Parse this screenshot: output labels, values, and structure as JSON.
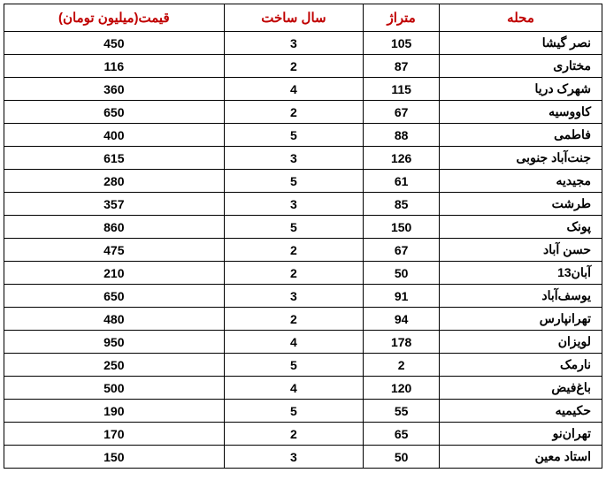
{
  "table": {
    "header_color": "#c00000",
    "columns": [
      "قیمت(میلیون تومان)",
      "سال ساخت",
      "متراژ",
      "محله"
    ],
    "rows": [
      {
        "price": "450",
        "year": "3",
        "area": "105",
        "neighborhood": "نصر گیشا"
      },
      {
        "price": "116",
        "year": "2",
        "area": "87",
        "neighborhood": "مختاری"
      },
      {
        "price": "360",
        "year": "4",
        "area": "115",
        "neighborhood": "شهرک دریا"
      },
      {
        "price": "650",
        "year": "2",
        "area": "67",
        "neighborhood": "کاووسیه"
      },
      {
        "price": "400",
        "year": "5",
        "area": "88",
        "neighborhood": "فاطمی"
      },
      {
        "price": "615",
        "year": "3",
        "area": "126",
        "neighborhood": "جنت‌آباد جنوبی"
      },
      {
        "price": "280",
        "year": "5",
        "area": "61",
        "neighborhood": "مجیدیه"
      },
      {
        "price": "357",
        "year": "3",
        "area": "85",
        "neighborhood": "طرشت"
      },
      {
        "price": "860",
        "year": "5",
        "area": "150",
        "neighborhood": "پونک"
      },
      {
        "price": "475",
        "year": "2",
        "area": "67",
        "neighborhood": "حسن آباد"
      },
      {
        "price": "210",
        "year": "2",
        "area": "50",
        "neighborhood": "13آبان"
      },
      {
        "price": "650",
        "year": "3",
        "area": "91",
        "neighborhood": "یوسف‌آباد"
      },
      {
        "price": "480",
        "year": "2",
        "area": "94",
        "neighborhood": "تهرانپارس"
      },
      {
        "price": "950",
        "year": "4",
        "area": "178",
        "neighborhood": "لویزان"
      },
      {
        "price": "250",
        "year": "5",
        "area": "2",
        "neighborhood": "نارمک"
      },
      {
        "price": "500",
        "year": "4",
        "area": "120",
        "neighborhood": "باغ‌فیض"
      },
      {
        "price": "190",
        "year": "5",
        "area": "55",
        "neighborhood": "حکیمیه"
      },
      {
        "price": "170",
        "year": "2",
        "area": "65",
        "neighborhood": "تهران‌نو"
      },
      {
        "price": "150",
        "year": "3",
        "area": "50",
        "neighborhood": "استاد معین"
      }
    ]
  }
}
